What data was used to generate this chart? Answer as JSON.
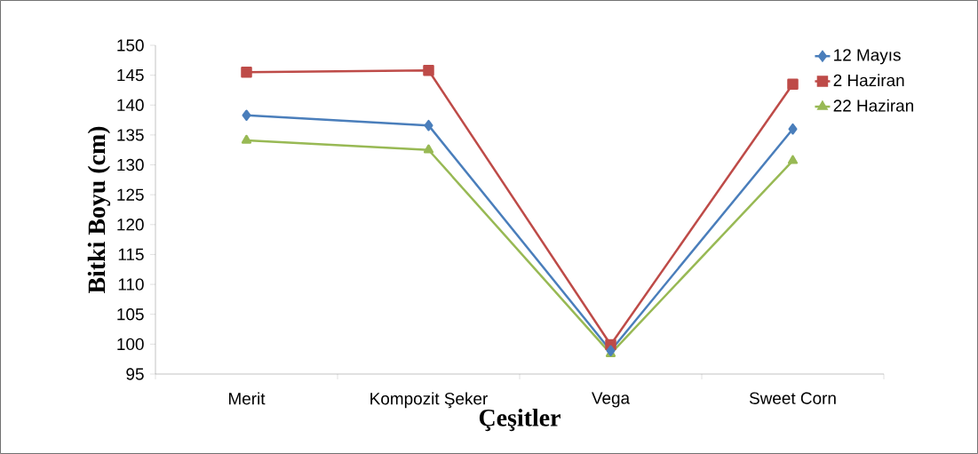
{
  "chart_data": {
    "type": "line",
    "xlabel": "Çeşitler",
    "ylabel": "Bitki Boyu (cm)",
    "categories": [
      "Merit",
      "Kompozit Şeker",
      "Vega",
      "Sweet Corn"
    ],
    "series": [
      {
        "name": "12 Mayıs",
        "color": "#4a7ebb",
        "marker": "diamond",
        "values": [
          138.3,
          136.6,
          98.9,
          136.0
        ]
      },
      {
        "name": "2 Haziran",
        "color": "#be4b48",
        "marker": "square",
        "values": [
          145.5,
          145.8,
          99.9,
          143.5
        ]
      },
      {
        "name": "22 Haziran",
        "color": "#98b954",
        "marker": "triangle",
        "values": [
          134.1,
          132.5,
          98.4,
          130.7
        ]
      }
    ],
    "ylim": [
      95,
      150
    ],
    "yticks": [
      95,
      100,
      105,
      110,
      115,
      120,
      125,
      130,
      135,
      140,
      145,
      150
    ],
    "grid": false,
    "legend": "top right"
  }
}
